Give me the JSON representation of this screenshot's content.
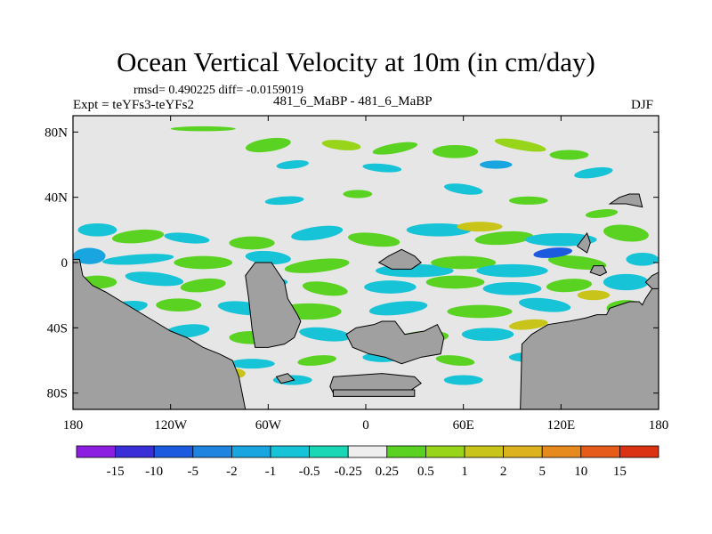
{
  "figure": {
    "title": "Ocean Vertical Velocity at 10m (in cm/day)",
    "stats": "rmsd= 0.490225 diff= -0.0159019",
    "experiment": "Expt = teYFs3-teYFs2",
    "case_names": "481_6_MaBP - 481_6_MaBP",
    "season": "DJF"
  },
  "chart_data": {
    "type": "heatmap",
    "title": "Ocean Vertical Velocity at 10m (in cm/day)",
    "units": "cm/day",
    "xlim": [
      -180,
      180
    ],
    "ylim": [
      -90,
      90
    ],
    "x_ticks": [
      {
        "value": -180,
        "label": "180"
      },
      {
        "value": -120,
        "label": "120W"
      },
      {
        "value": -60,
        "label": "60W"
      },
      {
        "value": 0,
        "label": "0"
      },
      {
        "value": 60,
        "label": "60E"
      },
      {
        "value": 120,
        "label": "120E"
      },
      {
        "value": 180,
        "label": "180"
      }
    ],
    "y_ticks": [
      {
        "value": 80,
        "label": "80N"
      },
      {
        "value": 40,
        "label": "40N"
      },
      {
        "value": 0,
        "label": "0"
      },
      {
        "value": -40,
        "label": "40S"
      },
      {
        "value": -80,
        "label": "80S"
      }
    ],
    "colorbar": {
      "levels": [
        "-15",
        "-10",
        "-5",
        "-2",
        "-1",
        "-0.5",
        "-0.25",
        "0.25",
        "0.5",
        "1",
        "2",
        "5",
        "10",
        "15"
      ],
      "colors": [
        "#8b1ee0",
        "#3a2ed8",
        "#1c5ae0",
        "#1e84e0",
        "#19a6e0",
        "#17c3d6",
        "#19d6b4",
        "#eeeeee",
        "#5ad221",
        "#98d41a",
        "#c8c41a",
        "#dcb21e",
        "#e68a1e",
        "#e65a1a",
        "#dc3214"
      ]
    },
    "land_color": "#a0a0a0",
    "missing_color": "#e6e6e6"
  }
}
